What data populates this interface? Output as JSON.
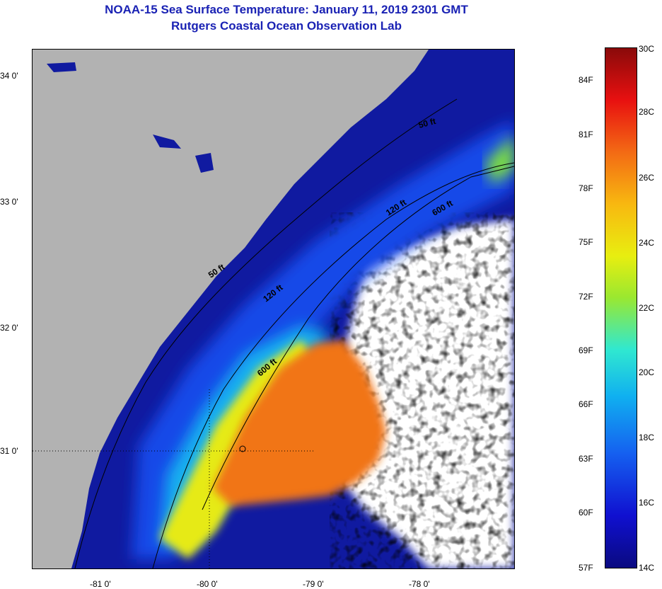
{
  "title": {
    "line1": "NOAA-15 Sea Surface Temperature:  January 11, 2019 2301 GMT",
    "line2": "Rutgers Coastal Ocean Observation Lab"
  },
  "map": {
    "lat_labels": [
      "34 0'",
      "33 0'",
      "32 0'",
      "31 0'"
    ],
    "lon_labels": [
      "-81 0'",
      "-80 0'",
      "-79 0'",
      "-78 0'"
    ],
    "isobath_labels": [
      "50 ft",
      "120 ft",
      "600 ft",
      "50 ft",
      "120 ft",
      "600 ft"
    ],
    "colors": {
      "land": "#b2b2b2",
      "cloud": "#ffffff",
      "contour": "#000000"
    }
  },
  "colorbar": {
    "fahrenheit": [
      "84F",
      "81F",
      "78F",
      "75F",
      "72F",
      "69F",
      "66F",
      "63F",
      "60F",
      "57F"
    ],
    "celsius": [
      "30C",
      "28C",
      "26C",
      "24C",
      "22C",
      "20C",
      "18C",
      "16C",
      "14C"
    ]
  }
}
